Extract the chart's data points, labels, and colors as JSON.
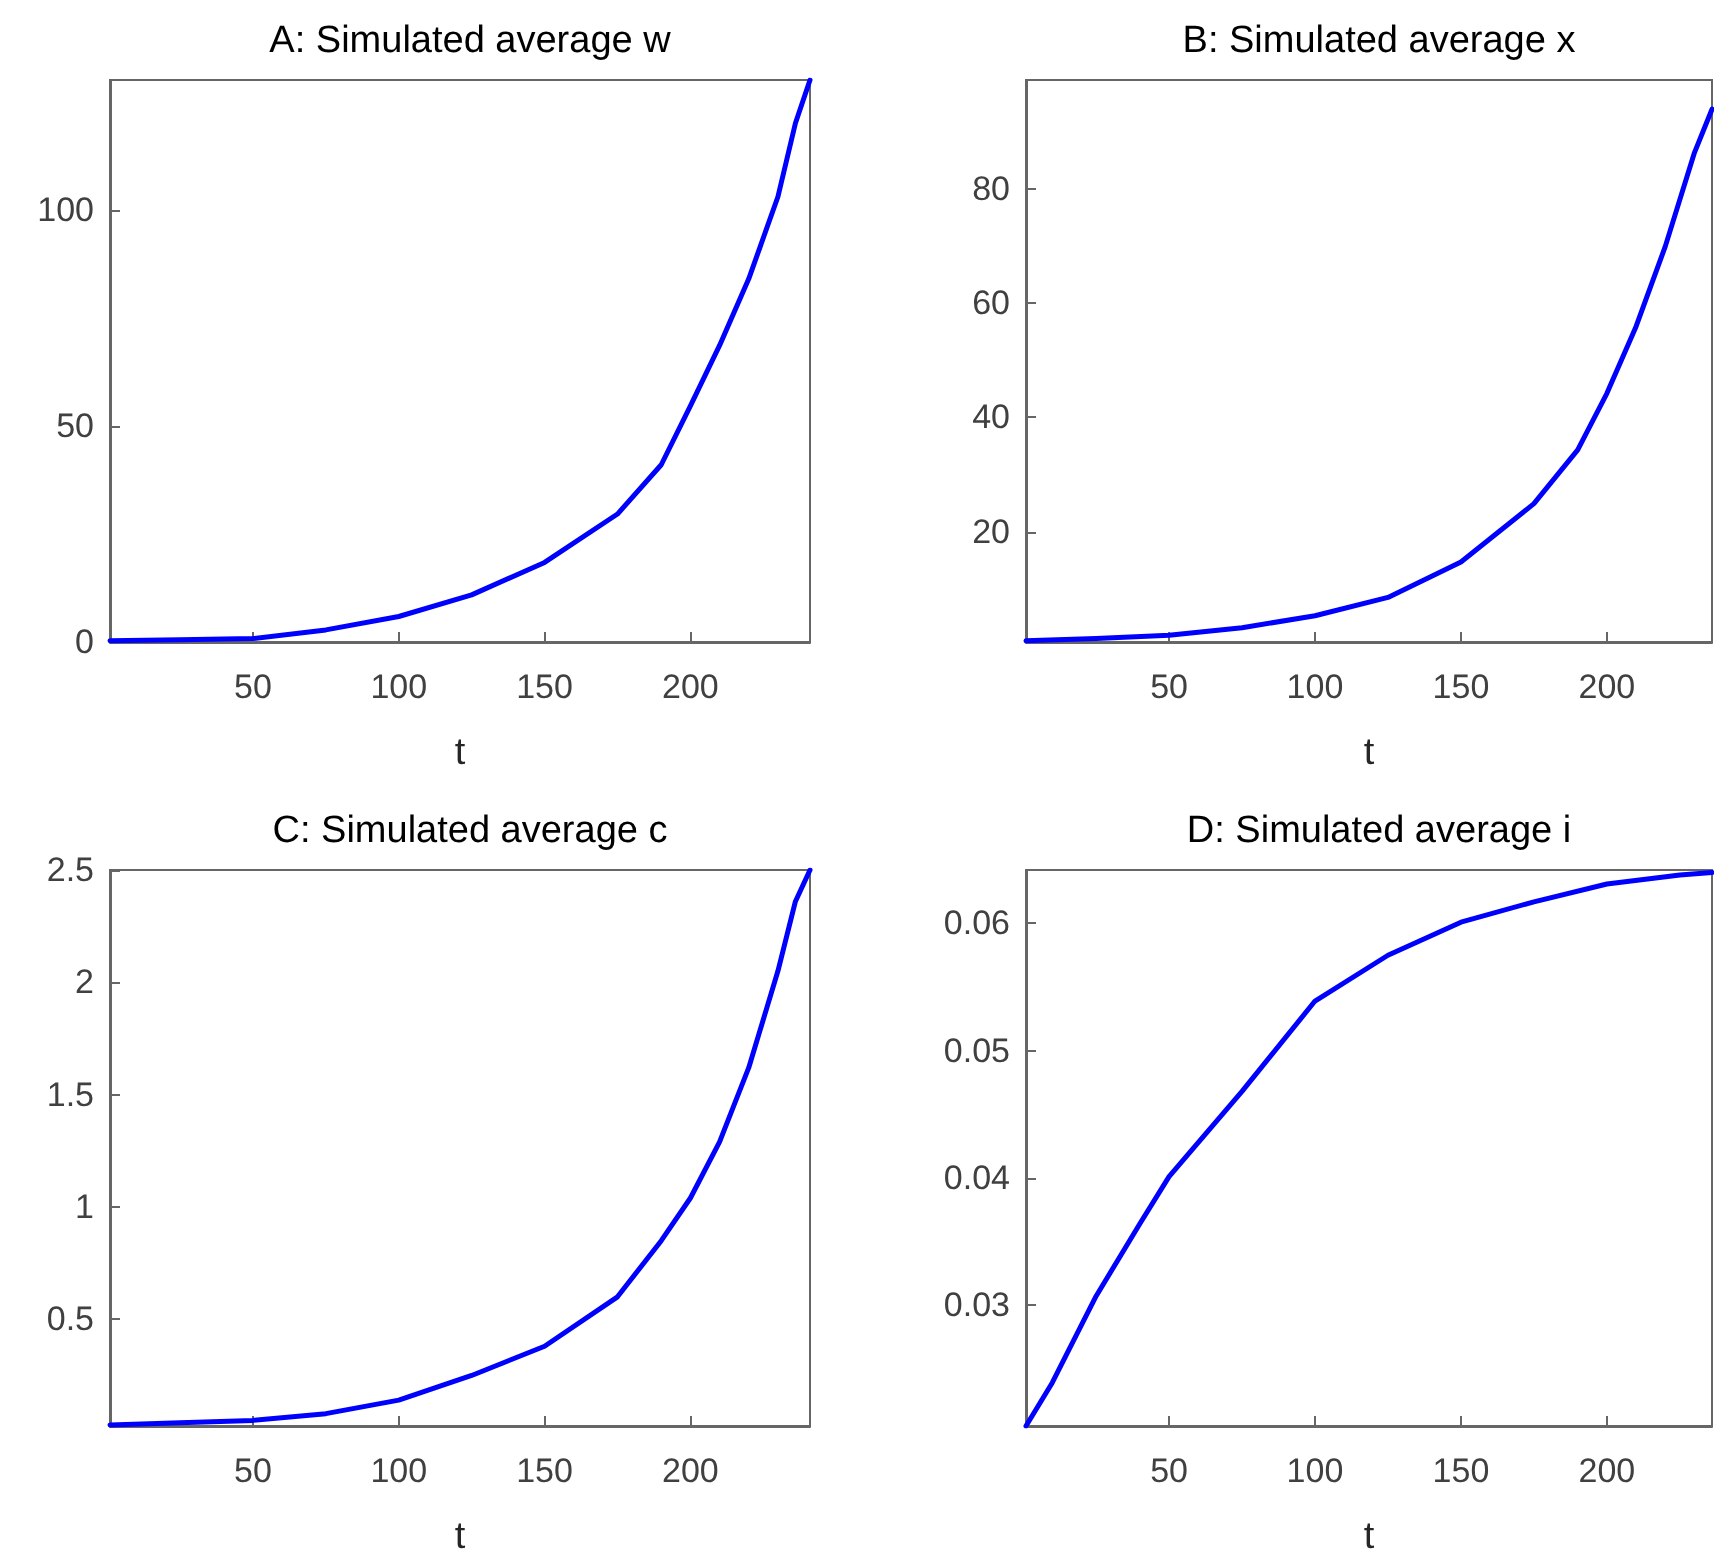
{
  "chart_data": [
    {
      "type": "line",
      "title": "A: Simulated average w",
      "xlabel": "t",
      "xlim": [
        1,
        241
      ],
      "xticks": [
        50,
        100,
        150,
        200
      ],
      "ylim": [
        0,
        130
      ],
      "yticks": [
        0,
        50,
        100
      ],
      "x": [
        1,
        25,
        50,
        75,
        100,
        125,
        150,
        175,
        190,
        200,
        210,
        220,
        230,
        236,
        241
      ],
      "series": [
        {
          "color": "#0000ff",
          "values": [
            0.3,
            0.5,
            0.8,
            2.8,
            5.9,
            10.9,
            18.4,
            29.6,
            41,
            54.6,
            68.6,
            84,
            103,
            120,
            130
          ]
        }
      ]
    },
    {
      "type": "line",
      "title": "B: Simulated average x",
      "xlabel": "t",
      "xlim": [
        1,
        236
      ],
      "xticks": [
        50,
        100,
        150,
        200
      ],
      "ylim": [
        0.7,
        99
      ],
      "yticks": [
        20,
        40,
        60,
        80
      ],
      "x": [
        1,
        25,
        50,
        75,
        100,
        125,
        150,
        175,
        190,
        200,
        210,
        220,
        230,
        236
      ],
      "series": [
        {
          "color": "#0000ff",
          "values": [
            0.9,
            1.3,
            1.9,
            3.2,
            5.3,
            8.5,
            14.7,
            24.9,
            34.3,
            44.2,
            55.9,
            69.9,
            86.3,
            93.9
          ]
        }
      ]
    },
    {
      "type": "line",
      "title": "C: Simulated average c",
      "xlabel": "t",
      "xlim": [
        1,
        241
      ],
      "xticks": [
        50,
        100,
        150,
        200
      ],
      "ylim": [
        0.025,
        2.5
      ],
      "yticks": [
        0.5,
        1,
        1.5,
        2,
        2.5
      ],
      "x": [
        1,
        25,
        50,
        75,
        100,
        125,
        150,
        175,
        190,
        200,
        210,
        220,
        230,
        236,
        241
      ],
      "series": [
        {
          "color": "#0000ff",
          "values": [
            0.03,
            0.04,
            0.05,
            0.08,
            0.14,
            0.25,
            0.38,
            0.6,
            0.85,
            1.04,
            1.29,
            1.62,
            2.05,
            2.36,
            2.5
          ]
        }
      ]
    },
    {
      "type": "line",
      "title": "D: Simulated average i",
      "xlabel": "t",
      "xlim": [
        1,
        236
      ],
      "xticks": [
        50,
        100,
        150,
        200
      ],
      "ylim": [
        0.0205,
        0.0642
      ],
      "yticks": [
        0.03,
        0.04,
        0.05,
        0.06
      ],
      "x": [
        1,
        10,
        25,
        40,
        50,
        75,
        100,
        125,
        150,
        175,
        200,
        225,
        236
      ],
      "series": [
        {
          "color": "#0000ff",
          "values": [
            0.0205,
            0.0239,
            0.0307,
            0.0364,
            0.0401,
            0.0468,
            0.0539,
            0.0575,
            0.0601,
            0.0617,
            0.0631,
            0.0638,
            0.064
          ]
        }
      ]
    }
  ]
}
